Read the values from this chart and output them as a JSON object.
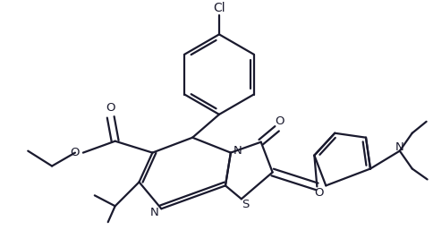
{
  "bg_color": "#ffffff",
  "line_color": "#1a1a2e",
  "line_width": 1.6,
  "figsize": [
    4.85,
    2.76
  ],
  "dpi": 100,
  "xlim": [
    0,
    485
  ],
  "ylim": [
    0,
    276
  ]
}
